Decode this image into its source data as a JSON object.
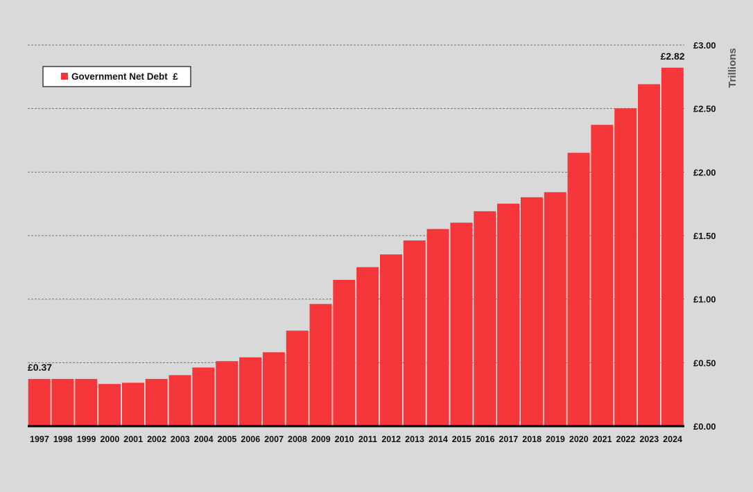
{
  "chart_data": {
    "type": "bar",
    "categories": [
      "1997",
      "1998",
      "1999",
      "2000",
      "2001",
      "2002",
      "2003",
      "2004",
      "2005",
      "2006",
      "2007",
      "2008",
      "2009",
      "2010",
      "2011",
      "2012",
      "2013",
      "2014",
      "2015",
      "2016",
      "2017",
      "2018",
      "2019",
      "2020",
      "2021",
      "2022",
      "2023",
      "2024"
    ],
    "series": [
      {
        "name": "Government Net Debt  £",
        "values": [
          0.37,
          0.37,
          0.37,
          0.33,
          0.34,
          0.37,
          0.4,
          0.46,
          0.51,
          0.54,
          0.58,
          0.75,
          0.96,
          1.15,
          1.25,
          1.35,
          1.46,
          1.55,
          1.6,
          1.69,
          1.75,
          1.8,
          1.84,
          2.15,
          2.37,
          2.5,
          2.69,
          2.82
        ]
      }
    ],
    "ylim": [
      0,
      3
    ],
    "yticks": [
      "£0.00",
      "£0.50",
      "£1.00",
      "£1.50",
      "£2.00",
      "£2.50",
      "£3.00"
    ],
    "ylabel": "Trillions",
    "yaxis_side": "right",
    "grid": "horizontal dashed",
    "legend_position": "top-left",
    "data_labels": [
      {
        "index": 0,
        "text": "£0.37"
      },
      {
        "index": 27,
        "text": "£2.82"
      }
    ],
    "bar_color": "#f5363a"
  }
}
